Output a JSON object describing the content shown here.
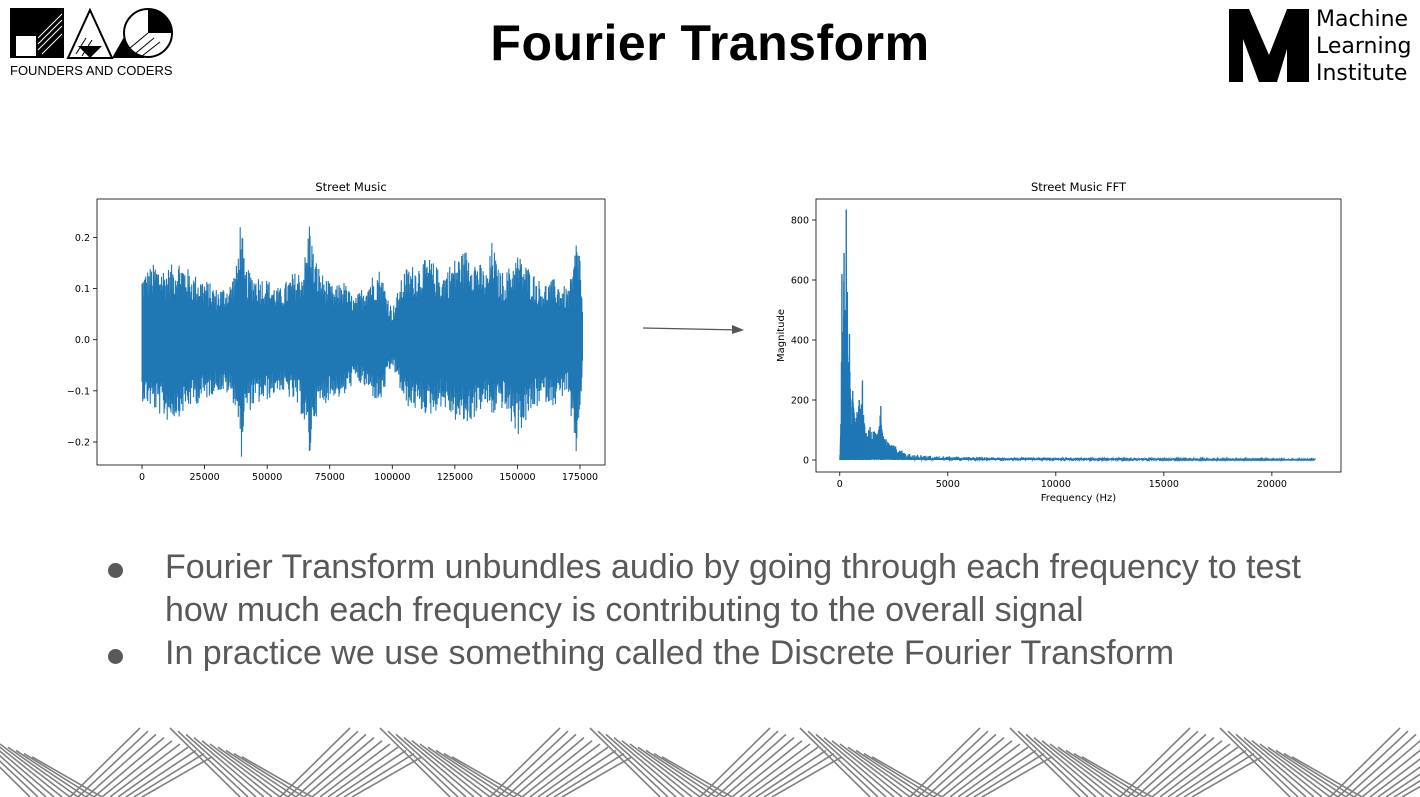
{
  "slide": {
    "title": "Fourier Transform",
    "left_logo_text": "FOUNDERS AND CODERS",
    "right_logo_lines": [
      "Machine",
      "Learning",
      "Institute"
    ],
    "bullets": [
      "Fourier Transform unbundles audio by going through each frequency to test how much each frequency is contributing to the overall signal",
      "In practice we use something called the Discrete Fourier Transform"
    ],
    "colors": {
      "series": "#1f77b4",
      "bullet_text": "#595959",
      "title": "#000000",
      "zigzag": "#808080"
    },
    "icons": [
      "founders-and-coders-logo",
      "machine-learning-institute-logo",
      "right-arrow-icon",
      "zigzag-pattern"
    ]
  },
  "chart_data": [
    {
      "type": "line",
      "title": "Street Music",
      "xlabel": "",
      "ylabel": "",
      "xlim": [
        -18000,
        185000
      ],
      "ylim": [
        -0.245,
        0.275
      ],
      "xticks": [
        0,
        25000,
        50000,
        75000,
        100000,
        125000,
        150000,
        175000
      ],
      "yticks": [
        -0.2,
        -0.1,
        0.0,
        0.1,
        0.2
      ],
      "ytick_labels": [
        "−0.2",
        "−0.1",
        "0.0",
        "0.1",
        "0.2"
      ],
      "grid": false,
      "series": [
        {
          "color": "#1f77b4",
          "x_range": [
            0,
            176000
          ],
          "envelope_x": [
            0,
            5000,
            10000,
            15000,
            20000,
            25000,
            30000,
            35000,
            38000,
            39500,
            41000,
            45000,
            50000,
            55000,
            60000,
            64000,
            66000,
            67000,
            68500,
            72000,
            77000,
            80000,
            85000,
            90000,
            95000,
            100000,
            105000,
            110000,
            115000,
            120000,
            125000,
            130000,
            135000,
            138000,
            140000,
            142000,
            145000,
            150000,
            155000,
            160000,
            165000,
            170000,
            172000,
            173500,
            175000,
            176000
          ],
          "upper": [
            0.13,
            0.15,
            0.14,
            0.16,
            0.13,
            0.12,
            0.1,
            0.11,
            0.15,
            0.255,
            0.14,
            0.13,
            0.12,
            0.1,
            0.13,
            0.14,
            0.19,
            0.25,
            0.17,
            0.13,
            0.1,
            0.12,
            0.08,
            0.12,
            0.14,
            0.06,
            0.14,
            0.15,
            0.16,
            0.13,
            0.16,
            0.18,
            0.15,
            0.13,
            0.2,
            0.14,
            0.13,
            0.17,
            0.14,
            0.11,
            0.12,
            0.1,
            0.13,
            0.2,
            0.18,
            0.06
          ],
          "lower": [
            -0.12,
            -0.14,
            -0.16,
            -0.15,
            -0.13,
            -0.12,
            -0.1,
            -0.11,
            -0.14,
            -0.245,
            -0.15,
            -0.13,
            -0.12,
            -0.1,
            -0.12,
            -0.15,
            -0.2,
            -0.24,
            -0.16,
            -0.13,
            -0.11,
            -0.12,
            -0.08,
            -0.1,
            -0.13,
            -0.05,
            -0.13,
            -0.14,
            -0.15,
            -0.13,
            -0.16,
            -0.17,
            -0.14,
            -0.13,
            -0.16,
            -0.13,
            -0.14,
            -0.19,
            -0.15,
            -0.12,
            -0.13,
            -0.1,
            -0.2,
            -0.23,
            -0.15,
            -0.06
          ]
        }
      ]
    },
    {
      "type": "line",
      "title": "Street Music FFT",
      "xlabel": "Frequency (Hz)",
      "ylabel": "Magnitude",
      "xlim": [
        -1100,
        23200
      ],
      "ylim": [
        -40,
        870
      ],
      "xticks": [
        0,
        5000,
        10000,
        15000,
        20000
      ],
      "yticks": [
        0,
        200,
        400,
        600,
        800
      ],
      "grid": false,
      "series": [
        {
          "color": "#1f77b4",
          "peaks": [
            {
              "x": 0,
              "y": 0
            },
            {
              "x": 50,
              "y": 120
            },
            {
              "x": 100,
              "y": 620
            },
            {
              "x": 150,
              "y": 400
            },
            {
              "x": 200,
              "y": 690
            },
            {
              "x": 250,
              "y": 500
            },
            {
              "x": 300,
              "y": 835
            },
            {
              "x": 350,
              "y": 560
            },
            {
              "x": 400,
              "y": 300
            },
            {
              "x": 450,
              "y": 420
            },
            {
              "x": 500,
              "y": 200
            },
            {
              "x": 600,
              "y": 230
            },
            {
              "x": 700,
              "y": 140
            },
            {
              "x": 800,
              "y": 160
            },
            {
              "x": 900,
              "y": 200
            },
            {
              "x": 1000,
              "y": 185
            },
            {
              "x": 1050,
              "y": 265
            },
            {
              "x": 1100,
              "y": 150
            },
            {
              "x": 1200,
              "y": 90
            },
            {
              "x": 1400,
              "y": 110
            },
            {
              "x": 1600,
              "y": 95
            },
            {
              "x": 1800,
              "y": 100
            },
            {
              "x": 1900,
              "y": 180
            },
            {
              "x": 2000,
              "y": 80
            },
            {
              "x": 2300,
              "y": 60
            },
            {
              "x": 2600,
              "y": 45
            },
            {
              "x": 3000,
              "y": 25
            },
            {
              "x": 4000,
              "y": 15
            },
            {
              "x": 6000,
              "y": 10
            },
            {
              "x": 10000,
              "y": 8
            },
            {
              "x": 15000,
              "y": 6
            },
            {
              "x": 22000,
              "y": 4
            }
          ]
        }
      ]
    }
  ]
}
